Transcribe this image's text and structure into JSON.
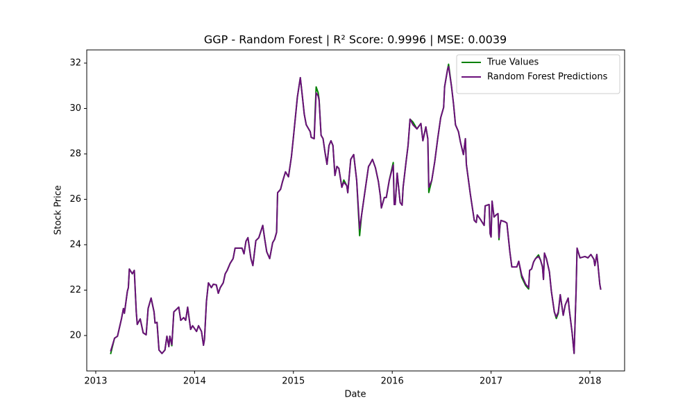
{
  "chart_data": {
    "type": "line",
    "title": "GGP - Random Forest | R² Score: 0.9996 | MSE: 0.0039",
    "x_label": "Date",
    "y_label": "Stock Price",
    "xlim": [
      2012.909,
      2018.351
    ],
    "xticks": [
      2013,
      2014,
      2015,
      2016,
      2017,
      2018
    ],
    "ylim": [
      18.44,
      32.58
    ],
    "yticks": [
      20,
      22,
      24,
      26,
      28,
      30,
      32
    ],
    "legend": "upper right",
    "x": [
      2013.15,
      2013.19,
      2013.22,
      2013.26,
      2013.28,
      2013.29,
      2013.32,
      2013.33,
      2013.34,
      2013.37,
      2013.39,
      2013.41,
      2013.42,
      2013.45,
      2013.48,
      2013.51,
      2013.53,
      2013.56,
      2013.59,
      2013.6,
      2013.62,
      2013.64,
      2013.67,
      2013.7,
      2013.72,
      2013.74,
      2013.75,
      2013.77,
      2013.79,
      2013.84,
      2013.86,
      2013.89,
      2013.91,
      2013.93,
      2013.96,
      2013.98,
      2014.02,
      2014.04,
      2014.07,
      2014.09,
      2014.1,
      2014.12,
      2014.14,
      2014.17,
      2014.19,
      2014.22,
      2014.24,
      2014.26,
      2014.29,
      2014.31,
      2014.33,
      2014.36,
      2014.39,
      2014.41,
      2014.45,
      2014.48,
      2014.5,
      2014.52,
      2014.54,
      2014.57,
      2014.59,
      2014.62,
      2014.65,
      2014.69,
      2014.71,
      2014.73,
      2014.76,
      2014.79,
      2014.81,
      2014.83,
      2014.84,
      2014.87,
      2014.89,
      2014.92,
      2014.95,
      2014.98,
      2015.0,
      2015.03,
      2015.04,
      2015.07,
      2015.09,
      2015.11,
      2015.13,
      2015.17,
      2015.18,
      2015.21,
      2015.22,
      2015.23,
      2015.25,
      2015.26,
      2015.28,
      2015.3,
      2015.32,
      2015.34,
      2015.36,
      2015.38,
      2015.4,
      2015.42,
      2015.44,
      2015.46,
      2015.49,
      2015.51,
      2015.54,
      2015.55,
      2015.58,
      2015.61,
      2015.64,
      2015.67,
      2015.69,
      2015.72,
      2015.76,
      2015.77,
      2015.8,
      2015.83,
      2015.86,
      2015.88,
      2015.89,
      2015.92,
      2015.94,
      2015.97,
      2016.01,
      2016.02,
      2016.03,
      2016.05,
      2016.08,
      2016.1,
      2016.11,
      2016.14,
      2016.16,
      2016.18,
      2016.21,
      2016.23,
      2016.25,
      2016.27,
      2016.29,
      2016.31,
      2016.34,
      2016.36,
      2016.37,
      2016.4,
      2016.43,
      2016.46,
      2016.49,
      2016.52,
      2016.53,
      2016.56,
      2016.57,
      2016.6,
      2016.62,
      2016.64,
      2016.67,
      2016.69,
      2016.72,
      2016.74,
      2016.75,
      2016.79,
      2016.83,
      2016.85,
      2016.86,
      2016.89,
      2016.93,
      2016.94,
      2016.98,
      2016.99,
      2017.0,
      2017.01,
      2017.03,
      2017.05,
      2017.07,
      2017.08,
      2017.09,
      2017.1,
      2017.14,
      2017.16,
      2017.19,
      2017.21,
      2017.26,
      2017.28,
      2017.31,
      2017.35,
      2017.38,
      2017.39,
      2017.41,
      2017.43,
      2017.45,
      2017.48,
      2017.5,
      2017.52,
      2017.53,
      2017.54,
      2017.56,
      2017.59,
      2017.61,
      2017.64,
      2017.66,
      2017.68,
      2017.7,
      2017.73,
      2017.75,
      2017.78,
      2017.79,
      2017.82,
      2017.84,
      2017.86,
      2017.87,
      2017.9,
      2017.95,
      2017.98,
      2018.01,
      2018.04,
      2018.05,
      2018.07,
      2018.08,
      2018.1,
      2018.11
    ],
    "series": [
      {
        "name": "True Values",
        "color": "#008000",
        "values": [
          19.18,
          19.88,
          19.97,
          20.73,
          21.19,
          20.98,
          21.95,
          22.11,
          22.93,
          22.72,
          22.87,
          21.04,
          20.49,
          20.73,
          20.12,
          20.03,
          21.19,
          21.65,
          21.04,
          20.55,
          20.58,
          19.36,
          19.21,
          19.36,
          19.97,
          19.51,
          19.97,
          19.55,
          21.04,
          21.25,
          20.67,
          20.79,
          20.67,
          21.25,
          20.27,
          20.43,
          20.18,
          20.43,
          20.18,
          19.57,
          19.82,
          21.5,
          22.32,
          22.11,
          22.26,
          22.23,
          21.86,
          22.11,
          22.32,
          22.72,
          22.87,
          23.18,
          23.39,
          23.85,
          23.85,
          23.85,
          23.6,
          24.15,
          24.31,
          23.39,
          23.08,
          24.18,
          24.31,
          24.85,
          24.24,
          23.69,
          23.39,
          24.09,
          24.24,
          24.55,
          26.29,
          26.44,
          26.78,
          27.21,
          26.99,
          27.88,
          28.73,
          30.05,
          30.5,
          31.36,
          30.56,
          29.74,
          29.28,
          28.98,
          28.73,
          28.67,
          29.9,
          30.95,
          30.7,
          30.4,
          28.82,
          28.67,
          28.06,
          27.54,
          28.37,
          28.58,
          28.37,
          27.05,
          27.45,
          27.36,
          26.53,
          26.85,
          26.6,
          26.29,
          27.76,
          27.97,
          26.84,
          24.4,
          25.31,
          26.23,
          27.45,
          27.51,
          27.76,
          27.39,
          26.78,
          26.14,
          25.62,
          26.08,
          26.08,
          26.84,
          27.62,
          25.77,
          25.77,
          27.15,
          25.86,
          25.74,
          26.53,
          27.66,
          28.37,
          29.53,
          29.4,
          29.25,
          29.1,
          29.22,
          29.34,
          28.58,
          29.19,
          28.67,
          26.3,
          26.84,
          27.66,
          28.67,
          29.59,
          30.05,
          30.96,
          31.73,
          31.95,
          30.96,
          30.2,
          29.28,
          28.98,
          28.52,
          27.97,
          28.67,
          27.54,
          26.23,
          25.07,
          24.98,
          25.31,
          25.13,
          24.85,
          25.71,
          25.77,
          24.49,
          24.34,
          25.92,
          25.22,
          25.31,
          25.37,
          24.22,
          24.85,
          25.07,
          25.01,
          24.95,
          23.69,
          23.02,
          23.02,
          23.27,
          22.56,
          22.2,
          22.05,
          22.87,
          22.93,
          23.24,
          23.39,
          23.55,
          23.33,
          23.02,
          22.47,
          23.63,
          23.39,
          22.81,
          21.95,
          21.04,
          20.75,
          20.98,
          21.8,
          20.89,
          21.34,
          21.65,
          21.19,
          20.12,
          19.21,
          21.95,
          23.85,
          23.42,
          23.48,
          23.42,
          23.57,
          23.36,
          23.08,
          23.57,
          23.18,
          22.26,
          22.02
        ]
      },
      {
        "name": "Random Forest Predictions",
        "color": "#6b0f7a",
        "values": [
          19.3,
          19.88,
          19.97,
          20.73,
          21.19,
          20.98,
          21.95,
          22.11,
          22.93,
          22.72,
          22.87,
          21.04,
          20.49,
          20.73,
          20.12,
          20.03,
          21.19,
          21.65,
          21.04,
          20.55,
          20.58,
          19.36,
          19.21,
          19.36,
          19.97,
          19.51,
          19.97,
          19.6,
          21.04,
          21.25,
          20.67,
          20.79,
          20.67,
          21.25,
          20.27,
          20.43,
          20.18,
          20.43,
          20.18,
          19.57,
          19.82,
          21.5,
          22.32,
          22.11,
          22.26,
          22.23,
          21.86,
          22.11,
          22.32,
          22.72,
          22.87,
          23.18,
          23.39,
          23.85,
          23.85,
          23.85,
          23.6,
          24.15,
          24.31,
          23.39,
          23.08,
          24.18,
          24.31,
          24.85,
          24.24,
          23.69,
          23.39,
          24.09,
          24.24,
          24.55,
          26.29,
          26.44,
          26.78,
          27.21,
          26.99,
          27.88,
          28.73,
          30.05,
          30.5,
          31.36,
          30.56,
          29.74,
          29.28,
          28.98,
          28.73,
          28.67,
          29.65,
          30.69,
          30.56,
          30.35,
          28.82,
          28.67,
          28.06,
          27.54,
          28.37,
          28.58,
          28.37,
          27.05,
          27.45,
          27.36,
          26.53,
          26.75,
          26.6,
          26.29,
          27.76,
          27.97,
          26.84,
          24.7,
          25.31,
          26.23,
          27.45,
          27.51,
          27.76,
          27.39,
          26.78,
          26.14,
          25.62,
          26.08,
          26.08,
          26.84,
          27.51,
          25.77,
          25.77,
          27.15,
          25.86,
          25.74,
          26.53,
          27.66,
          28.37,
          29.53,
          29.28,
          29.19,
          29.1,
          29.22,
          29.34,
          28.58,
          29.19,
          28.67,
          26.53,
          26.84,
          27.66,
          28.67,
          29.59,
          30.05,
          30.96,
          31.73,
          31.85,
          30.96,
          30.2,
          29.28,
          28.98,
          28.52,
          27.97,
          28.67,
          27.54,
          26.23,
          25.07,
          24.98,
          25.31,
          25.13,
          24.85,
          25.71,
          25.77,
          24.49,
          24.34,
          25.92,
          25.22,
          25.31,
          25.37,
          24.31,
          24.85,
          25.07,
          25.01,
          24.95,
          23.69,
          23.02,
          23.02,
          23.27,
          22.66,
          22.26,
          22.11,
          22.87,
          22.93,
          23.24,
          23.39,
          23.48,
          23.33,
          23.02,
          22.47,
          23.63,
          23.39,
          22.81,
          21.95,
          21.04,
          20.82,
          21.04,
          21.8,
          20.89,
          21.34,
          21.65,
          21.19,
          20.12,
          19.21,
          21.95,
          23.85,
          23.42,
          23.48,
          23.42,
          23.57,
          23.36,
          23.08,
          23.57,
          23.18,
          22.26,
          22.02
        ]
      }
    ]
  }
}
